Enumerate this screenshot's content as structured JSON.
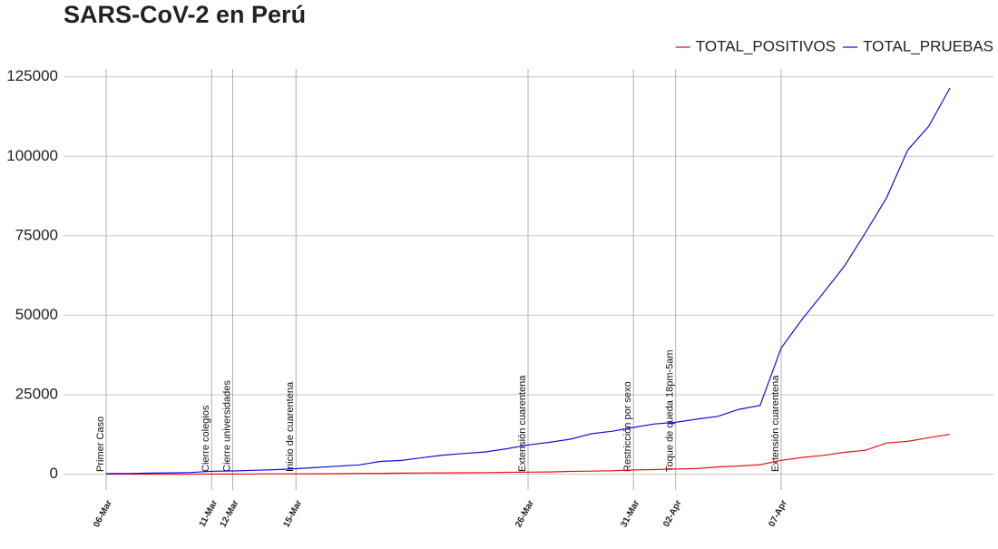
{
  "chart_data": {
    "type": "line",
    "title": "SARS-CoV-2 en Perú",
    "categories": [
      "06-Mar",
      null,
      null,
      null,
      null,
      "11-Mar",
      "12-Mar",
      null,
      null,
      "15-Mar",
      null,
      null,
      null,
      null,
      null,
      null,
      null,
      null,
      null,
      null,
      "26-Mar",
      null,
      null,
      null,
      null,
      "31-Mar",
      null,
      "02-Apr",
      null,
      null,
      null,
      null,
      "07-Apr",
      null,
      null,
      null,
      null,
      null,
      null,
      null,
      null
    ],
    "series": [
      {
        "name": "TOTAL_POSITIVOS",
        "color": "#e8101c",
        "values": [
          1,
          6,
          7,
          9,
          11,
          22,
          38,
          43,
          71,
          86,
          117,
          145,
          234,
          263,
          318,
          363,
          395,
          416,
          480,
          580,
          635,
          671,
          852,
          950,
          1065,
          1323,
          1414,
          1595,
          1746,
          2281,
          2561,
          2954,
          4342,
          5256,
          5897,
          6848,
          7519,
          9784,
          10303,
          11475,
          12491
        ]
      },
      {
        "name": "TOTAL_PRUEBAS",
        "color": "#1010e0",
        "values": [
          155,
          200,
          300,
          400,
          500,
          900,
          1000,
          1200,
          1400,
          1700,
          2100,
          2500,
          2900,
          4000,
          4300,
          5200,
          6000,
          6500,
          7000,
          8000,
          9200,
          10000,
          11000,
          12700,
          13500,
          14700,
          15800,
          16300,
          17300,
          18200,
          20400,
          21600,
          39700,
          48800,
          57000,
          65500,
          76000,
          87000,
          102000,
          109500,
          121500
        ]
      }
    ],
    "annotations": [
      {
        "index": 0,
        "label": "Primer Caso"
      },
      {
        "index": 5,
        "label": "Cierre colegios"
      },
      {
        "index": 6,
        "label": "Cierre universidades"
      },
      {
        "index": 9,
        "label": "Inicio de cuarentena"
      },
      {
        "index": 20,
        "label": "Extensión cuarentena"
      },
      {
        "index": 25,
        "label": "Restricción por sexo"
      },
      {
        "index": 27,
        "label": "Toque de queda 18pm-5am"
      },
      {
        "index": 32,
        "label": "Extensión cuarentena"
      }
    ],
    "ylim": [
      -5000,
      127500
    ],
    "yticks": [
      0,
      25000,
      50000,
      75000,
      100000,
      125000
    ],
    "grid": true,
    "legend": "top-right"
  }
}
